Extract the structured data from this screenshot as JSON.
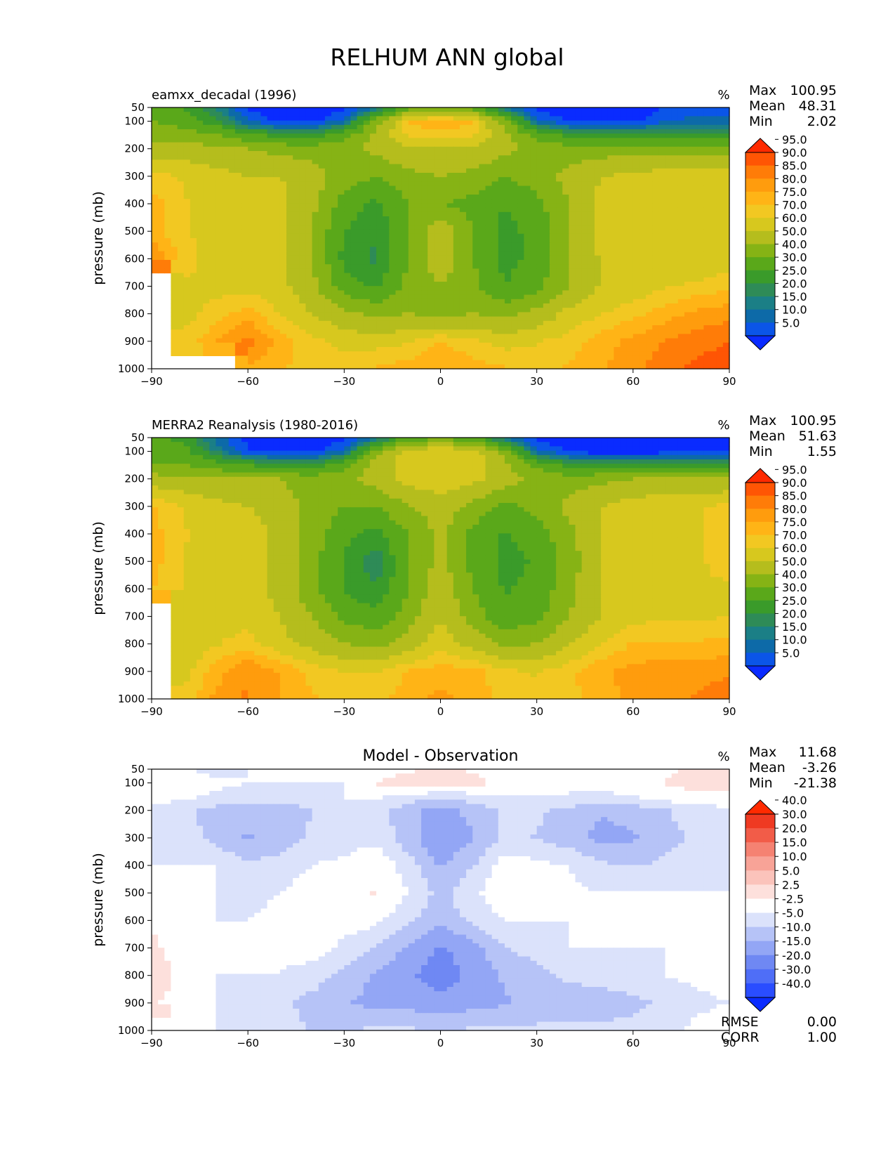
{
  "figure": {
    "title": "RELHUM ANN global"
  },
  "chart_data": [
    {
      "type": "heatmap",
      "panel": "test",
      "title": "eamxx_decadal (1996)",
      "units": "%",
      "xlabel": "",
      "ylabel": "pressure (mb)",
      "xticks": [
        -90,
        -60,
        -30,
        0,
        30,
        60,
        90
      ],
      "yticks": [
        50,
        100,
        200,
        300,
        400,
        500,
        600,
        700,
        800,
        900,
        1000
      ],
      "xlim": [
        -90,
        90
      ],
      "ylim": [
        1000,
        50
      ],
      "stats": [
        {
          "label": "Max",
          "value": "100.95"
        },
        {
          "label": "Mean",
          "value": "48.31"
        },
        {
          "label": "Min",
          "value": "2.02"
        }
      ],
      "colorbar": {
        "levels": [
          "5.0",
          "10.0",
          "15.0",
          "20.0",
          "25.0",
          "30.0",
          "40.0",
          "50.0",
          "60.0",
          "70.0",
          "75.0",
          "80.0",
          "85.0",
          "90.0",
          "95.0"
        ],
        "colors": [
          "#0a2bff",
          "#0b55e8",
          "#0d6aa8",
          "#1b7f86",
          "#2e8b57",
          "#3a9b2a",
          "#5aa81a",
          "#86b315",
          "#b5bd1d",
          "#d7c81e",
          "#f2c822",
          "#ffb416",
          "#ff9c0d",
          "#ff7c08",
          "#ff5504",
          "#ff2a00"
        ],
        "extend": "both"
      },
      "levels": [
        2,
        7.5,
        12.5,
        17.5,
        22.5,
        27.5,
        35,
        45,
        55,
        65,
        72.5,
        77.5,
        82.5,
        87.5,
        92.5,
        98
      ],
      "field": {
        "x": [
          -90,
          -80,
          -70,
          -60,
          -50,
          -40,
          -30,
          -20,
          -10,
          0,
          10,
          20,
          30,
          40,
          50,
          60,
          70,
          80,
          90
        ],
        "y": [
          50,
          100,
          150,
          200,
          300,
          400,
          500,
          600,
          700,
          800,
          900,
          1000
        ],
        "z": [
          [
            40,
            35,
            22,
            6,
            4,
            3,
            5,
            15,
            40,
            45,
            40,
            15,
            5,
            3,
            3,
            4,
            8,
            10,
            10
          ],
          [
            45,
            40,
            30,
            12,
            6,
            5,
            15,
            50,
            78,
            82,
            78,
            50,
            15,
            6,
            5,
            6,
            12,
            14,
            14
          ],
          [
            50,
            50,
            45,
            38,
            30,
            30,
            40,
            58,
            74,
            75,
            74,
            58,
            40,
            32,
            30,
            30,
            32,
            32,
            32
          ],
          [
            60,
            60,
            58,
            55,
            52,
            50,
            52,
            58,
            65,
            62,
            65,
            58,
            52,
            50,
            50,
            50,
            50,
            50,
            50
          ],
          [
            75,
            72,
            68,
            65,
            65,
            60,
            50,
            45,
            52,
            55,
            52,
            45,
            50,
            58,
            65,
            67,
            70,
            72,
            72
          ],
          [
            80,
            73,
            70,
            70,
            68,
            58,
            40,
            33,
            45,
            45,
            42,
            35,
            42,
            55,
            68,
            70,
            70,
            70,
            72
          ],
          [
            80,
            73,
            70,
            70,
            68,
            55,
            35,
            28,
            45,
            62,
            45,
            32,
            38,
            55,
            67,
            68,
            68,
            68,
            70
          ],
          [
            88,
            75,
            70,
            70,
            68,
            55,
            32,
            26,
            45,
            62,
            45,
            32,
            38,
            55,
            66,
            66,
            66,
            66,
            70
          ],
          [
            null,
            72,
            70,
            70,
            68,
            58,
            40,
            33,
            48,
            55,
            48,
            35,
            42,
            55,
            66,
            68,
            72,
            74,
            76
          ],
          [
            null,
            70,
            75,
            80,
            72,
            65,
            58,
            52,
            55,
            52,
            55,
            52,
            58,
            68,
            72,
            76,
            80,
            84,
            86
          ],
          [
            null,
            74,
            82,
            90,
            80,
            74,
            70,
            70,
            72,
            78,
            74,
            70,
            72,
            75,
            80,
            84,
            88,
            90,
            92
          ],
          [
            null,
            null,
            null,
            82,
            78,
            76,
            76,
            78,
            80,
            82,
            80,
            78,
            76,
            78,
            82,
            86,
            90,
            94,
            98
          ]
        ]
      }
    },
    {
      "type": "heatmap",
      "panel": "reference",
      "title": "MERRA2 Reanalysis (1980-2016)",
      "units": "%",
      "xlabel": "",
      "ylabel": "pressure (mb)",
      "xticks": [
        -90,
        -60,
        -30,
        0,
        30,
        60,
        90
      ],
      "yticks": [
        50,
        100,
        200,
        300,
        400,
        500,
        600,
        700,
        800,
        900,
        1000
      ],
      "xlim": [
        -90,
        90
      ],
      "ylim": [
        1000,
        50
      ],
      "stats": [
        {
          "label": "Max",
          "value": "100.95"
        },
        {
          "label": "Mean",
          "value": "51.63"
        },
        {
          "label": "Min",
          "value": "1.55"
        }
      ],
      "colorbar": {
        "levels": [
          "5.0",
          "10.0",
          "15.0",
          "20.0",
          "25.0",
          "30.0",
          "40.0",
          "50.0",
          "60.0",
          "70.0",
          "75.0",
          "80.0",
          "85.0",
          "90.0",
          "95.0"
        ],
        "colors": [
          "#0a2bff",
          "#0b55e8",
          "#0d6aa8",
          "#1b7f86",
          "#2e8b57",
          "#3a9b2a",
          "#5aa81a",
          "#86b315",
          "#b5bd1d",
          "#d7c81e",
          "#f2c822",
          "#ffb416",
          "#ff9c0d",
          "#ff7c08",
          "#ff5504",
          "#ff2a00"
        ],
        "extend": "both"
      },
      "levels": [
        2,
        7.5,
        12.5,
        17.5,
        22.5,
        27.5,
        35,
        45,
        55,
        65,
        72.5,
        77.5,
        82.5,
        87.5,
        92.5,
        98
      ],
      "field": {
        "x": [
          -90,
          -80,
          -70,
          -60,
          -50,
          -40,
          -30,
          -20,
          -10,
          0,
          10,
          20,
          30,
          40,
          50,
          60,
          70,
          80,
          90
        ],
        "y": [
          50,
          100,
          150,
          200,
          300,
          400,
          500,
          600,
          700,
          800,
          900,
          1000
        ],
        "z": [
          [
            38,
            32,
            15,
            5,
            3,
            3,
            5,
            15,
            38,
            42,
            38,
            15,
            5,
            3,
            3,
            3,
            3,
            5,
            6
          ],
          [
            42,
            38,
            22,
            8,
            5,
            5,
            15,
            50,
            70,
            72,
            70,
            50,
            15,
            6,
            4,
            3,
            5,
            7,
            8
          ],
          [
            45,
            45,
            40,
            35,
            30,
            30,
            42,
            60,
            70,
            70,
            70,
            58,
            42,
            32,
            30,
            30,
            30,
            30,
            30
          ],
          [
            60,
            58,
            55,
            55,
            55,
            50,
            52,
            60,
            68,
            72,
            68,
            60,
            52,
            50,
            52,
            55,
            55,
            55,
            58
          ],
          [
            78,
            72,
            68,
            65,
            60,
            52,
            45,
            45,
            55,
            60,
            52,
            42,
            48,
            58,
            65,
            70,
            72,
            72,
            74
          ],
          [
            80,
            73,
            70,
            70,
            62,
            50,
            38,
            32,
            45,
            58,
            42,
            34,
            40,
            52,
            65,
            70,
            72,
            72,
            76
          ],
          [
            80,
            72,
            70,
            70,
            62,
            48,
            34,
            22,
            45,
            58,
            42,
            32,
            36,
            50,
            65,
            70,
            72,
            72,
            74
          ],
          [
            78,
            72,
            70,
            70,
            62,
            48,
            34,
            28,
            45,
            62,
            45,
            34,
            38,
            52,
            65,
            70,
            72,
            72,
            72
          ],
          [
            null,
            70,
            70,
            70,
            65,
            55,
            42,
            38,
            50,
            65,
            50,
            38,
            42,
            55,
            65,
            70,
            72,
            72,
            72
          ],
          [
            null,
            68,
            72,
            75,
            68,
            62,
            55,
            52,
            60,
            70,
            62,
            52,
            55,
            65,
            72,
            78,
            78,
            78,
            80
          ],
          [
            null,
            70,
            80,
            88,
            82,
            76,
            72,
            72,
            78,
            80,
            80,
            74,
            72,
            76,
            82,
            84,
            86,
            86,
            86
          ],
          [
            null,
            74,
            84,
            88,
            82,
            78,
            76,
            76,
            80,
            84,
            80,
            76,
            74,
            76,
            80,
            84,
            86,
            88,
            92
          ]
        ]
      }
    },
    {
      "type": "heatmap",
      "panel": "difference",
      "title": "Model - Observation",
      "units": "%",
      "xlabel": "",
      "ylabel": "pressure (mb)",
      "xticks": [
        -90,
        -60,
        -30,
        0,
        30,
        60,
        90
      ],
      "yticks": [
        50,
        100,
        200,
        300,
        400,
        500,
        600,
        700,
        800,
        900,
        1000
      ],
      "xlim": [
        -90,
        90
      ],
      "ylim": [
        1000,
        50
      ],
      "stats": [
        {
          "label": "Max",
          "value": "11.68"
        },
        {
          "label": "Mean",
          "value": "-3.26"
        },
        {
          "label": "Min",
          "value": "-21.38"
        }
      ],
      "extra_stats": [
        {
          "label": "RMSE",
          "value": "0.00"
        },
        {
          "label": "CORR",
          "value": "1.00"
        }
      ],
      "colorbar": {
        "levels": [
          "-40.0",
          "-30.0",
          "-20.0",
          "-15.0",
          "-10.0",
          "-5.0",
          "-2.5",
          "2.5",
          "5.0",
          "10.0",
          "15.0",
          "20.0",
          "30.0",
          "40.0"
        ],
        "colors": [
          "#0a2bff",
          "#2a4dff",
          "#4f6ef7",
          "#6f88f3",
          "#93a6f5",
          "#b6c3f7",
          "#dbe2fb",
          "#ffffff",
          "#fde0dc",
          "#fbc3bb",
          "#f8a397",
          "#f58272",
          "#f25c48",
          "#ef3a22",
          "#ff2a00"
        ],
        "extend": "both"
      },
      "levels": [
        -45,
        -35,
        -25,
        -17.5,
        -12.5,
        -7.5,
        -3.75,
        0,
        3.75,
        7.5,
        12.5,
        17.5,
        25,
        35,
        45
      ],
      "field": {
        "x": [
          -90,
          -80,
          -70,
          -60,
          -50,
          -40,
          -30,
          -20,
          -10,
          0,
          10,
          20,
          30,
          40,
          50,
          60,
          70,
          80,
          90
        ],
        "y": [
          50,
          100,
          150,
          200,
          300,
          400,
          500,
          600,
          700,
          800,
          900,
          1000
        ],
        "z": [
          [
            1,
            1,
            -2,
            0,
            0,
            0,
            0,
            0,
            3,
            4,
            3,
            0,
            0,
            0,
            0,
            0,
            3,
            5,
            5
          ],
          [
            4,
            2,
            1,
            0,
            0,
            0,
            0,
            4,
            7,
            8,
            6,
            2,
            0,
            0,
            1,
            2,
            4,
            5,
            6
          ],
          [
            2,
            1,
            -1,
            -2,
            -3,
            -2,
            0,
            1,
            -2,
            -3,
            -2,
            0,
            0,
            0,
            -1,
            0,
            2,
            3,
            3
          ],
          [
            -1,
            -3,
            -5,
            -6,
            -5,
            -4,
            -1,
            -2,
            -6,
            -9,
            -6,
            -3,
            -3,
            -5,
            -7,
            -6,
            -4,
            -2,
            -1
          ],
          [
            -1,
            -2,
            -5,
            -8,
            -6,
            -3,
            -2,
            -1,
            -6,
            -11,
            -8,
            -3,
            -4,
            -6,
            -9,
            -8,
            -5,
            -3,
            -2
          ],
          [
            0,
            0,
            0,
            -3,
            -2,
            0,
            1,
            3,
            -2,
            -8,
            -4,
            2,
            1,
            0,
            -3,
            -4,
            -3,
            -2,
            -2
          ],
          [
            2,
            1,
            0,
            -1,
            0,
            2,
            3,
            4,
            0,
            -5,
            -1,
            3,
            2,
            1,
            0,
            0,
            0,
            0,
            0
          ],
          [
            3,
            1,
            0,
            0,
            1,
            3,
            2,
            1,
            -3,
            -6,
            -3,
            0,
            0,
            0,
            0,
            0,
            0,
            0,
            1
          ],
          [
            5,
            1,
            0,
            0,
            1,
            2,
            -1,
            -4,
            -8,
            -13,
            -9,
            -4,
            -2,
            0,
            0,
            0,
            0,
            1,
            3
          ],
          [
            7,
            2,
            0,
            0,
            0,
            -2,
            -5,
            -8,
            -11,
            -17,
            -10,
            -7,
            -5,
            -3,
            -2,
            -1,
            0,
            1,
            2
          ],
          [
            4,
            2,
            0,
            -1,
            -3,
            -5,
            -7,
            -9,
            -9,
            -10,
            -9,
            -8,
            -6,
            -6,
            -6,
            -5,
            -3,
            -1,
            0
          ],
          [
            null,
            0,
            0,
            0,
            -2,
            -4,
            -4,
            -3,
            -3,
            -4,
            -3,
            -3,
            -3,
            -3,
            -3,
            -2,
            -1,
            1,
            3
          ]
        ]
      }
    }
  ]
}
